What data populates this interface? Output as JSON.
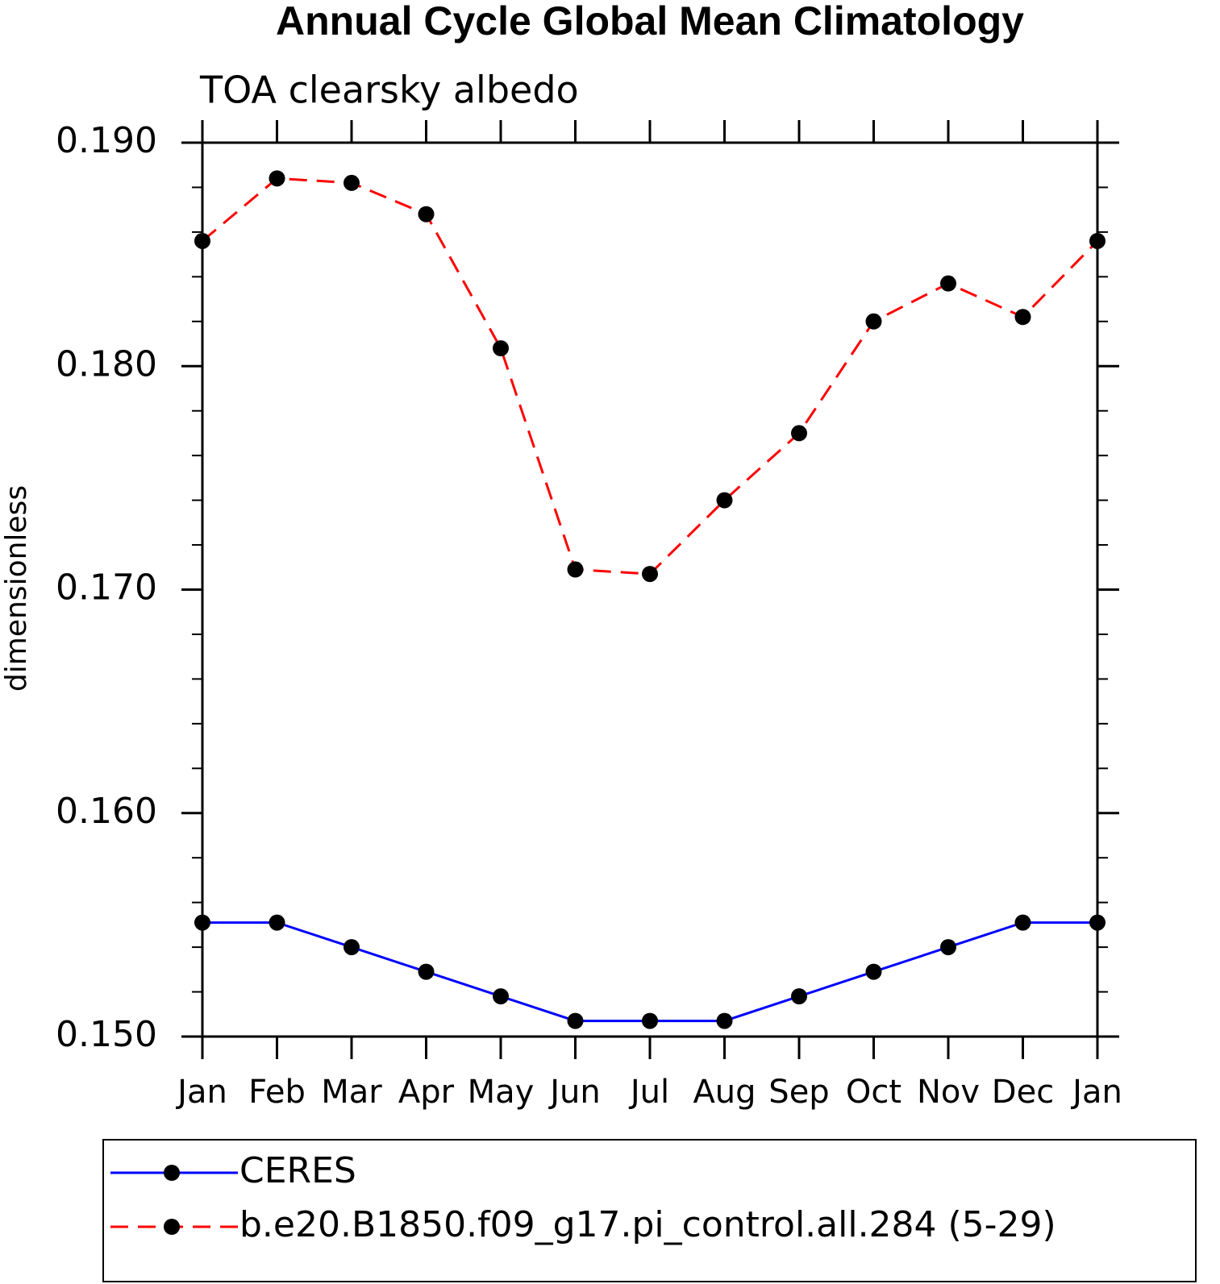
{
  "chart_data": {
    "type": "line",
    "title": "Annual Cycle Global Mean Climatology",
    "subtitle": "TOA clearsky albedo",
    "ylabel": "dimensionless",
    "categories": [
      "Jan",
      "Feb",
      "Mar",
      "Apr",
      "May",
      "Jun",
      "Jul",
      "Aug",
      "Sep",
      "Oct",
      "Nov",
      "Dec",
      "Jan"
    ],
    "ylim": [
      0.15,
      0.19
    ],
    "yticks": [
      {
        "value": 0.15,
        "label": "0.150"
      },
      {
        "value": 0.16,
        "label": "0.160"
      },
      {
        "value": 0.17,
        "label": "0.170"
      },
      {
        "value": 0.18,
        "label": "0.180"
      },
      {
        "value": 0.19,
        "label": "0.190"
      }
    ],
    "marker_color": "#000000",
    "series": [
      {
        "name": "CERES",
        "color": "#0000ff",
        "dashed": false,
        "values": [
          0.1551,
          0.1551,
          0.154,
          0.1529,
          0.1518,
          0.1507,
          0.1507,
          0.1507,
          0.1518,
          0.1529,
          0.154,
          0.1551,
          0.1551
        ]
      },
      {
        "name": "b.e20.B1850.f09_g17.pi_control.all.284 (5-29)",
        "color": "#ff0000",
        "dashed": true,
        "values": [
          0.1856,
          0.1884,
          0.1882,
          0.1868,
          0.1808,
          0.1709,
          0.1707,
          0.174,
          0.177,
          0.182,
          0.1837,
          0.1822,
          0.1856
        ]
      }
    ]
  }
}
